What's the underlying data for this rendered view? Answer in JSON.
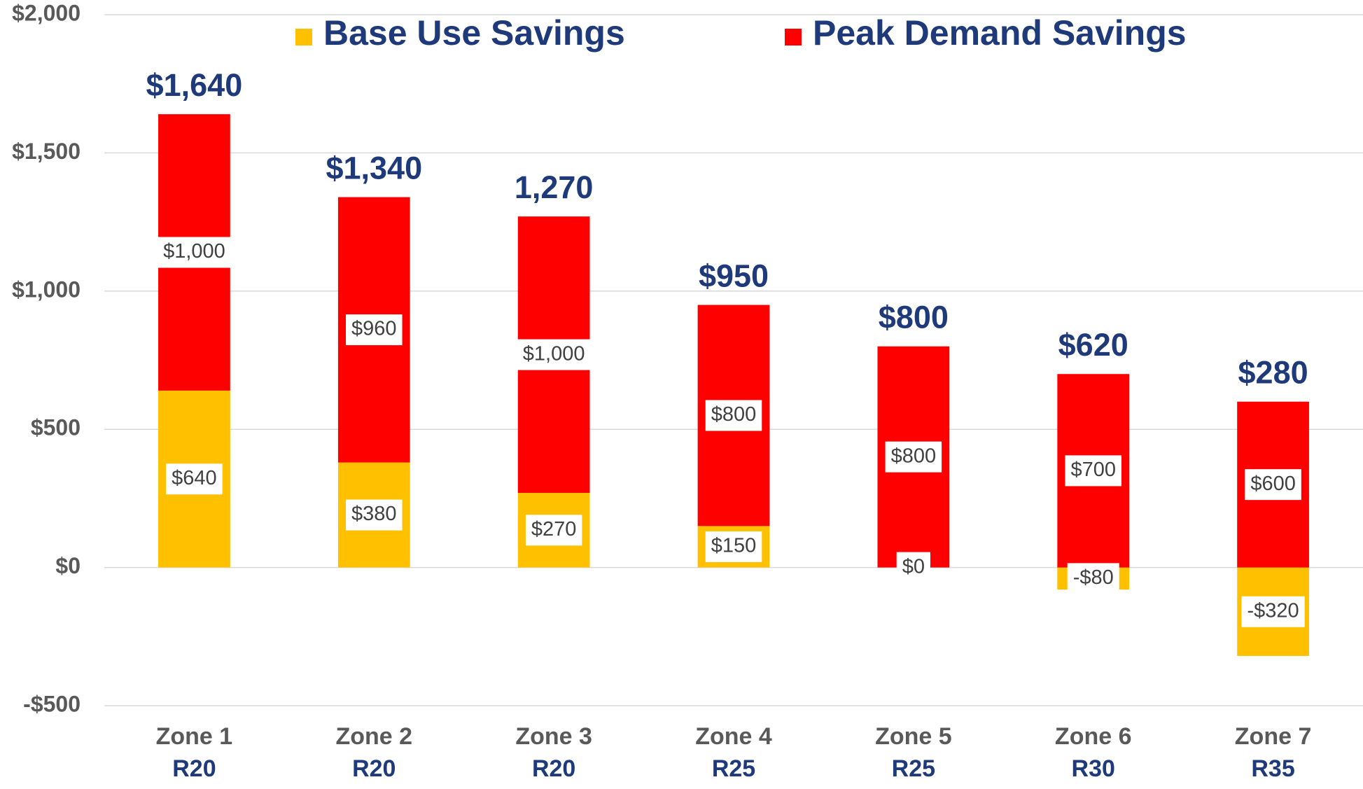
{
  "chart_data": {
    "type": "stacked_bar",
    "categories": [
      "Zone 1",
      "Zone 2",
      "Zone 3",
      "Zone 4",
      "Zone 5",
      "Zone 6",
      "Zone 7"
    ],
    "category_sublabels": [
      "R20",
      "R20",
      "R20",
      "R25",
      "R25",
      "R30",
      "R35"
    ],
    "series": [
      {
        "name": "Base Use Savings",
        "color": "#ffc000",
        "values": [
          640,
          380,
          270,
          150,
          0,
          -80,
          -320
        ],
        "value_labels": [
          "$640",
          "$380",
          "$270",
          "$150",
          "$0",
          "-$80",
          "-$320"
        ]
      },
      {
        "name": "Peak Demand Savings",
        "color": "#ff0000",
        "values": [
          1000,
          960,
          1000,
          800,
          800,
          700,
          600
        ],
        "value_labels": [
          "$1,000",
          "$960",
          "$1,000",
          "$800",
          "$800",
          "$700",
          "$600"
        ]
      }
    ],
    "totals": [
      1640,
      1340,
      1270,
      950,
      800,
      620,
      280
    ],
    "total_labels": [
      "$1,640",
      "$1,340",
      "1,270",
      "$950",
      "$800",
      "$620",
      "$280"
    ],
    "ylim": [
      -500,
      2000
    ],
    "yticks": [
      {
        "value": -500,
        "label": "-$500"
      },
      {
        "value": 0,
        "label": "$0"
      },
      {
        "value": 500,
        "label": "$500"
      },
      {
        "value": 1000,
        "label": "$1,000"
      },
      {
        "value": 1500,
        "label": "$1,500"
      },
      {
        "value": 2000,
        "label": "$2,000"
      }
    ],
    "grid": true,
    "legend": "top"
  }
}
